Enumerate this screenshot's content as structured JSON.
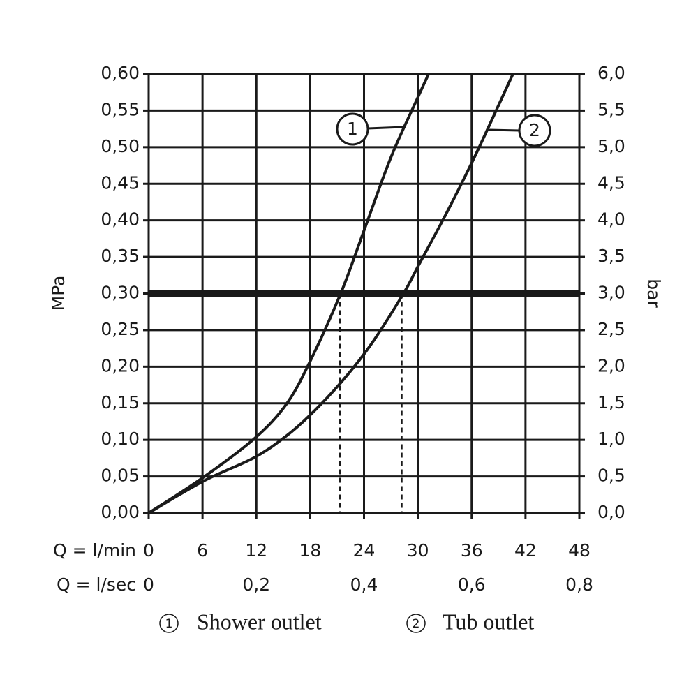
{
  "chart_data": {
    "type": "line",
    "y_label": "MPa",
    "y2_label": "bar",
    "x_label": "Q = l/min",
    "x2_label": "Q = l/sec",
    "xlim": [
      0,
      48
    ],
    "xticks": [
      0,
      6,
      12,
      18,
      24,
      30,
      36,
      42,
      48
    ],
    "x2lim": [
      0,
      0.8
    ],
    "x2ticks": [
      0,
      {
        "value": 0.2,
        "label": "0,2"
      },
      {
        "value": 0.4,
        "label": "0,4"
      },
      {
        "value": 0.6,
        "label": "0,6"
      },
      {
        "value": 0.8,
        "label": "0,8"
      }
    ],
    "ylim": [
      0,
      0.6
    ],
    "yticks": [
      {
        "value": 0,
        "label": "0,00"
      },
      {
        "value": 0.05,
        "label": "0,05"
      },
      {
        "value": 0.1,
        "label": "0,10"
      },
      {
        "value": 0.15,
        "label": "0,15"
      },
      {
        "value": 0.2,
        "label": "0,20"
      },
      {
        "value": 0.25,
        "label": "0,25"
      },
      {
        "value": 0.3,
        "label": "0,30"
      },
      {
        "value": 0.35,
        "label": "0,35"
      },
      {
        "value": 0.4,
        "label": "0,40"
      },
      {
        "value": 0.45,
        "label": "0,45"
      },
      {
        "value": 0.5,
        "label": "0,50"
      },
      {
        "value": 0.55,
        "label": "0,55"
      },
      {
        "value": 0.6,
        "label": "0,60"
      }
    ],
    "y2lim": [
      0,
      6
    ],
    "y2ticks": [
      {
        "value": 0,
        "label": "0,0"
      },
      {
        "value": 0.5,
        "label": "0,5"
      },
      {
        "value": 1,
        "label": "1,0"
      },
      {
        "value": 1.5,
        "label": "1,5"
      },
      {
        "value": 2,
        "label": "2,0"
      },
      {
        "value": 2.5,
        "label": "2,5"
      },
      {
        "value": 3,
        "label": "3,0"
      },
      {
        "value": 3.5,
        "label": "3,5"
      },
      {
        "value": 4,
        "label": "4,0"
      },
      {
        "value": 4.5,
        "label": "4,5"
      },
      {
        "value": 5,
        "label": "5,0"
      },
      {
        "value": 5.5,
        "label": "5,5"
      },
      {
        "value": 6,
        "label": "6,0"
      }
    ],
    "grid": true,
    "color": "#1a1a1a",
    "reference_line": {
      "y": 0.3,
      "x_drops": [
        21.3,
        28.2
      ]
    },
    "series": [
      {
        "name": "Shower outlet",
        "marker": "1",
        "x": [
          0,
          6,
          11.8,
          15.3,
          17.9,
          21.4,
          24.0,
          27.0,
          30.0,
          31.2
        ],
        "values": [
          0,
          0.048,
          0.102,
          0.148,
          0.205,
          0.3,
          0.386,
          0.486,
          0.568,
          0.6
        ]
      },
      {
        "name": "Tub outlet",
        "marker": "2",
        "x": [
          0,
          6,
          11.8,
          15.3,
          18.0,
          21.4,
          24.7,
          28.4,
          30.1,
          33.2,
          36.3,
          40.6
        ],
        "values": [
          0,
          0.043,
          0.076,
          0.105,
          0.134,
          0.178,
          0.229,
          0.3,
          0.339,
          0.41,
          0.486,
          0.6
        ]
      }
    ]
  }
}
